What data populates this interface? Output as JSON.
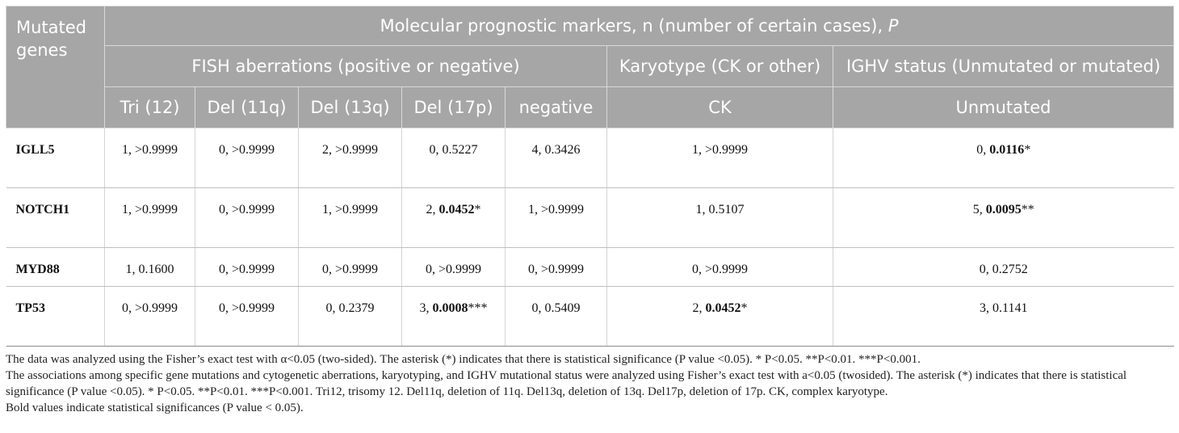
{
  "header": {
    "genes": "Mutated genes",
    "top": "Molecular prognostic markers, n (number of certain cases), ",
    "top_p": "P",
    "fish": "FISH aberrations (positive or negative)",
    "karyo": "Karyotype (CK or other)",
    "ighv": "IGHV status (Unmutated or mutated)",
    "cols": [
      "Tri (12)",
      "Del (11q)",
      "Del (13q)",
      "Del (17p)",
      "negative",
      "CK",
      "Unmutated"
    ]
  },
  "rows": [
    {
      "gene": "IGLL5",
      "c": [
        [
          "1, >0.9999",
          ""
        ],
        [
          "0, >0.9999",
          ""
        ],
        [
          "2, >0.9999",
          ""
        ],
        [
          "0, 0.5227",
          ""
        ],
        [
          "4, 0.3426",
          ""
        ],
        [
          "1, >0.9999",
          ""
        ],
        [
          "0, ",
          "0.0116",
          "*"
        ]
      ]
    },
    {
      "gene": "NOTCH1",
      "c": [
        [
          "1, >0.9999",
          ""
        ],
        [
          "0, >0.9999",
          ""
        ],
        [
          "1, >0.9999",
          ""
        ],
        [
          "2, ",
          "0.0452",
          "*"
        ],
        [
          "1, >0.9999",
          ""
        ],
        [
          "1, 0.5107",
          ""
        ],
        [
          "5, ",
          "0.0095",
          "**"
        ]
      ]
    },
    {
      "gene": "MYD88",
      "c": [
        [
          "1, 0.1600",
          ""
        ],
        [
          "0, >0.9999",
          ""
        ],
        [
          "0, >0.9999",
          ""
        ],
        [
          "0, >0.9999",
          ""
        ],
        [
          "0, >0.9999",
          ""
        ],
        [
          "0, >0.9999",
          ""
        ],
        [
          "0, 0.2752",
          ""
        ]
      ]
    },
    {
      "gene": "TP53",
      "c": [
        [
          "0, >0.9999",
          ""
        ],
        [
          "0, >0.9999",
          ""
        ],
        [
          "0, 0.2379",
          ""
        ],
        [
          "3, ",
          "0.0008",
          "***"
        ],
        [
          "0, 0.5409",
          ""
        ],
        [
          "2, ",
          "0.0452",
          "*"
        ],
        [
          "3, 0.1141",
          ""
        ]
      ]
    }
  ],
  "notes": [
    "The data was analyzed using the Fisher’s exact test with α<0.05 (two-sided). The asterisk (*) indicates that there is statistical significance (P value <0.05). * P<0.05. **P<0.01. ***P<0.001.",
    "The associations among specific gene mutations and cytogenetic aberrations, karyotyping, and IGHV mutational status were analyzed using Fisher’s exact test with a<0.05 (twosided). The asterisk (*) indicates that there is statistical significance (P value <0.05). * P<0.05. **P<0.01. ***P<0.001. Tri12, trisomy 12. Del11q, deletion of 11q. Del13q, deletion of 13q. Del17p, deletion of 17p. CK, complex karyotype.",
    "Bold values indicate  statistical significances (P value < 0.05)."
  ]
}
